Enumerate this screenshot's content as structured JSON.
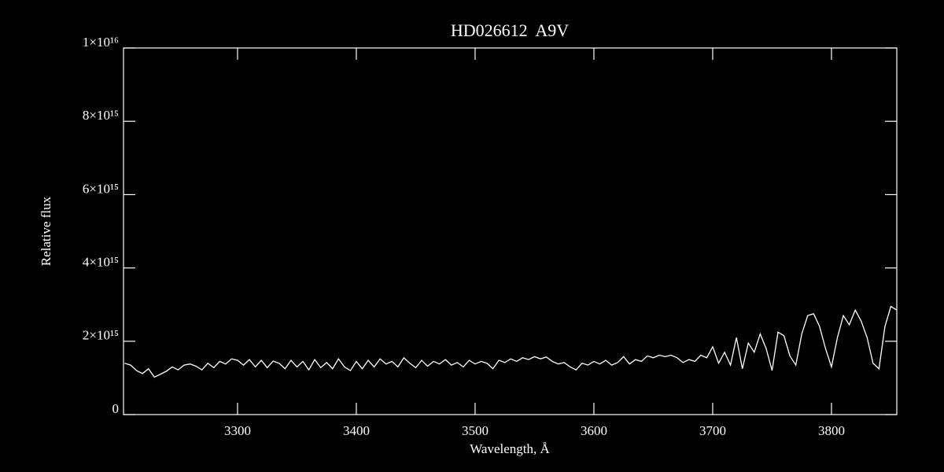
{
  "chart_data": {
    "type": "line",
    "title": "HD026612  A9V",
    "x_label": "Wavelength, Å",
    "y_label": "Relative flux",
    "xlim": [
      3204,
      3855
    ],
    "ylim": [
      0,
      1e+16
    ],
    "xticks": [
      3300,
      3400,
      3500,
      3600,
      3700,
      3800
    ],
    "yticks": [
      0,
      {
        "value": 2000000000000000.0,
        "label": "2×10¹⁵"
      },
      {
        "value": 4000000000000000.0,
        "label": "4×10¹⁵"
      },
      {
        "value": 6000000000000000.0,
        "label": "6×10¹⁵"
      },
      {
        "value": 8000000000000000.0,
        "label": "8×10¹⁵"
      },
      {
        "value": 1e+16,
        "label": "1×10¹⁶"
      }
    ],
    "color": "#ffffff",
    "x": [
      3205,
      3210,
      3215,
      3220,
      3225,
      3230,
      3235,
      3240,
      3245,
      3250,
      3255,
      3260,
      3265,
      3270,
      3275,
      3280,
      3285,
      3290,
      3295,
      3300,
      3305,
      3310,
      3315,
      3320,
      3325,
      3330,
      3335,
      3340,
      3345,
      3350,
      3355,
      3360,
      3365,
      3370,
      3375,
      3380,
      3385,
      3390,
      3395,
      3400,
      3405,
      3410,
      3415,
      3420,
      3425,
      3430,
      3435,
      3440,
      3445,
      3450,
      3455,
      3460,
      3465,
      3470,
      3475,
      3480,
      3485,
      3490,
      3495,
      3500,
      3505,
      3510,
      3515,
      3520,
      3525,
      3530,
      3535,
      3540,
      3545,
      3550,
      3555,
      3560,
      3565,
      3570,
      3575,
      3580,
      3585,
      3590,
      3595,
      3600,
      3605,
      3610,
      3615,
      3620,
      3625,
      3630,
      3635,
      3640,
      3645,
      3650,
      3655,
      3660,
      3665,
      3670,
      3675,
      3680,
      3685,
      3690,
      3695,
      3700,
      3705,
      3710,
      3715,
      3720,
      3725,
      3730,
      3735,
      3740,
      3745,
      3750,
      3755,
      3760,
      3765,
      3770,
      3775,
      3780,
      3785,
      3790,
      3795,
      3800,
      3805,
      3810,
      3815,
      3820,
      3825,
      3830,
      3835,
      3840,
      3845,
      3850,
      3855
    ],
    "values": [
      1400000000000000.0,
      1350000000000000.0,
      1200000000000000.0,
      1120000000000000.0,
      1250000000000000.0,
      1020000000000000.0,
      1100000000000000.0,
      1180000000000000.0,
      1300000000000000.0,
      1220000000000000.0,
      1350000000000000.0,
      1380000000000000.0,
      1320000000000000.0,
      1220000000000000.0,
      1400000000000000.0,
      1280000000000000.0,
      1450000000000000.0,
      1380000000000000.0,
      1520000000000000.0,
      1480000000000000.0,
      1350000000000000.0,
      1500000000000000.0,
      1300000000000000.0,
      1480000000000000.0,
      1280000000000000.0,
      1460000000000000.0,
      1400000000000000.0,
      1250000000000000.0,
      1480000000000000.0,
      1300000000000000.0,
      1450000000000000.0,
      1220000000000000.0,
      1500000000000000.0,
      1280000000000000.0,
      1420000000000000.0,
      1250000000000000.0,
      1520000000000000.0,
      1300000000000000.0,
      1200000000000000.0,
      1450000000000000.0,
      1250000000000000.0,
      1480000000000000.0,
      1300000000000000.0,
      1520000000000000.0,
      1380000000000000.0,
      1450000000000000.0,
      1300000000000000.0,
      1550000000000000.0,
      1400000000000000.0,
      1280000000000000.0,
      1480000000000000.0,
      1320000000000000.0,
      1450000000000000.0,
      1380000000000000.0,
      1500000000000000.0,
      1350000000000000.0,
      1420000000000000.0,
      1300000000000000.0,
      1480000000000000.0,
      1380000000000000.0,
      1450000000000000.0,
      1400000000000000.0,
      1250000000000000.0,
      1480000000000000.0,
      1420000000000000.0,
      1520000000000000.0,
      1450000000000000.0,
      1550000000000000.0,
      1500000000000000.0,
      1580000000000000.0,
      1520000000000000.0,
      1570000000000000.0,
      1450000000000000.0,
      1380000000000000.0,
      1420000000000000.0,
      1300000000000000.0,
      1220000000000000.0,
      1400000000000000.0,
      1350000000000000.0,
      1450000000000000.0,
      1380000000000000.0,
      1480000000000000.0,
      1350000000000000.0,
      1420000000000000.0,
      1580000000000000.0,
      1380000000000000.0,
      1500000000000000.0,
      1450000000000000.0,
      1600000000000000.0,
      1550000000000000.0,
      1620000000000000.0,
      1580000000000000.0,
      1620000000000000.0,
      1550000000000000.0,
      1420000000000000.0,
      1500000000000000.0,
      1450000000000000.0,
      1620000000000000.0,
      1550000000000000.0,
      1850000000000000.0,
      1400000000000000.0,
      1700000000000000.0,
      1350000000000000.0,
      2100000000000000.0,
      1250000000000000.0,
      1950000000000000.0,
      1700000000000000.0,
      2200000000000000.0,
      1800000000000000.0,
      1200000000000000.0,
      2250000000000000.0,
      2150000000000000.0,
      1600000000000000.0,
      1350000000000000.0,
      2200000000000000.0,
      2700000000000000.0,
      2750000000000000.0,
      2400000000000000.0,
      1800000000000000.0,
      1300000000000000.0,
      2100000000000000.0,
      2700000000000000.0,
      2450000000000000.0,
      2850000000000000.0,
      2550000000000000.0,
      2100000000000000.0,
      1400000000000000.0,
      1250000000000000.0,
      2400000000000000.0,
      2950000000000000.0,
      2850000000000000.0
    ]
  }
}
